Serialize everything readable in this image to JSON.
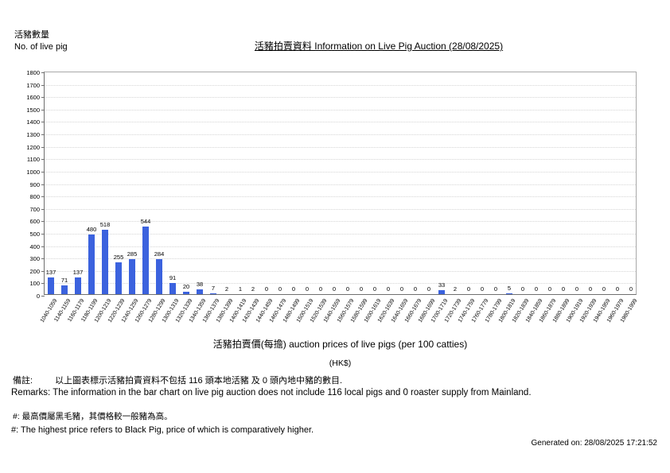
{
  "header": {
    "y_axis_title_zh": "活豬數量",
    "y_axis_title_en": "No. of live pig",
    "title": "活豬拍賣資料 Information on Live Pig Auction (28/08/2025)"
  },
  "chart_data": {
    "type": "bar",
    "title": "活豬拍賣資料 Information on Live Pig Auction (28/08/2025)",
    "xlabel": "活豬拍賣價(每擔) auction prices of live pigs (per 100 catties)",
    "xlabel_unit": "(HK$)",
    "ylabel": "活豬數量 No. of live pig",
    "ylim": [
      0,
      1800
    ],
    "ytick_step": 100,
    "grid": true,
    "legend": "none",
    "bar_color": "#3b62de",
    "categories": [
      "1040-1059",
      "1140-1159",
      "1160-1179",
      "1180-1199",
      "1200-1219",
      "1220-1239",
      "1240-1259",
      "1260-1279",
      "1280-1299",
      "1300-1319",
      "1320-1339",
      "1340-1359",
      "1360-1379",
      "1380-1399",
      "1400-1419",
      "1420-1439",
      "1440-1459",
      "1460-1479",
      "1480-1499",
      "1500-1519",
      "1520-1539",
      "1540-1559",
      "1560-1579",
      "1580-1599",
      "1600-1619",
      "1620-1639",
      "1640-1659",
      "1660-1679",
      "1680-1699",
      "1700-1719",
      "1720-1739",
      "1740-1759",
      "1760-1779",
      "1780-1799",
      "1800-1819",
      "1820-1839",
      "1840-1859",
      "1860-1879",
      "1880-1899",
      "1900-1919",
      "1920-1939",
      "1940-1959",
      "1960-1979",
      "1980-1999"
    ],
    "values": [
      137,
      71,
      137,
      480,
      518,
      255,
      285,
      544,
      284,
      91,
      20,
      38,
      7,
      2,
      1,
      2,
      0,
      0,
      0,
      0,
      0,
      0,
      0,
      0,
      0,
      0,
      0,
      0,
      0,
      33,
      2,
      0,
      0,
      0,
      5,
      0,
      0,
      0,
      0,
      0,
      0,
      0,
      0,
      0
    ]
  },
  "footer": {
    "remark_label_zh": "備註:",
    "remark_text_zh": "以上圖表標示活豬拍賣資料不包括 116 頭本地活豬 及 0 頭內地中豬的數目.",
    "remark_en": "Remarks: The information in the bar chart on live pig auction does not include 116 local pigs and 0 roaster supply from Mainland.",
    "note_zh": "#: 最高價屬黑毛豬，其價格較一般豬為高。",
    "note_en": "#: The highest price refers to Black Pig, price of which is comparatively higher.",
    "generated": "Generated on: 28/08/2025 17:21:52"
  }
}
